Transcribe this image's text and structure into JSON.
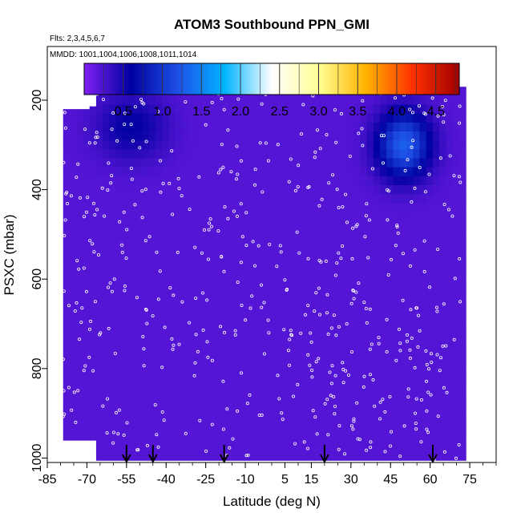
{
  "chart_data": {
    "type": "heatmap",
    "title": "ATOM3 Southbound PPN_GMI",
    "flights_label": "Flts: 2,3,4,5,6,7",
    "dates_label": "MMDD: 1001,1004,1006,1008,1011,1014",
    "xlabel": "Latitude (deg N)",
    "ylabel": "PSXC (mbar)",
    "xlim": [
      -85,
      85
    ],
    "ylim": [
      1010,
      80
    ],
    "y_inverted": true,
    "x_ticks": [
      -85,
      -70,
      -55,
      -40,
      -25,
      -10,
      5,
      15,
      30,
      45,
      60,
      75
    ],
    "x_tick_labels": [
      "-85",
      "-70",
      "-55",
      "-40",
      "-25",
      "-10",
      "5",
      "15",
      "30",
      "45",
      "60",
      "75"
    ],
    "y_ticks": [
      200,
      400,
      600,
      800,
      1000
    ],
    "y_tick_labels": [
      "200",
      "400",
      "600",
      "800",
      "1000"
    ],
    "colorbar": {
      "range": [
        0,
        4.8
      ],
      "colors": [
        "#8020f0",
        "#0000a0",
        "#1e50e6",
        "#00b4ff",
        "#ffffff",
        "#ffff96",
        "#ffb400",
        "#ff3200",
        "#a00000"
      ],
      "ticks": [
        0.5,
        1.0,
        1.5,
        2.0,
        2.5,
        3.0,
        3.5,
        4.0,
        4.5
      ],
      "tick_labels": [
        "0.5",
        "1.0",
        "1.5",
        "2.0",
        "2.5",
        "3.0",
        "3.5",
        "4.0",
        "4.5"
      ]
    },
    "background_value": 0.2,
    "data_extent": {
      "lat_range": [
        -79,
        72
      ],
      "pressure_top_by_lat": [
        [
          -79,
          220
        ],
        [
          -68,
          220
        ],
        [
          -66,
          170
        ],
        [
          72,
          170
        ]
      ],
      "pressure_bottom_by_lat": [
        [
          -79,
          960
        ],
        [
          -66,
          960
        ],
        [
          -66,
          1005
        ],
        [
          72,
          1005
        ]
      ]
    },
    "features": [
      {
        "name": "southern_high_latitude_maximum",
        "lat_range": [
          -68,
          -28
        ],
        "pressure_range": [
          200,
          420
        ],
        "peak_value": 0.6,
        "peak_lat": -53,
        "peak_pressure": 260
      },
      {
        "name": "northern_midlatitude_maximum",
        "lat_range": [
          38,
          68
        ],
        "pressure_range": [
          200,
          420
        ],
        "peak_value": 1.3,
        "peak_lat": 50,
        "peak_pressure": 300
      }
    ],
    "profile_latitudes": [
      -55,
      -45,
      -18,
      20,
      61
    ]
  }
}
